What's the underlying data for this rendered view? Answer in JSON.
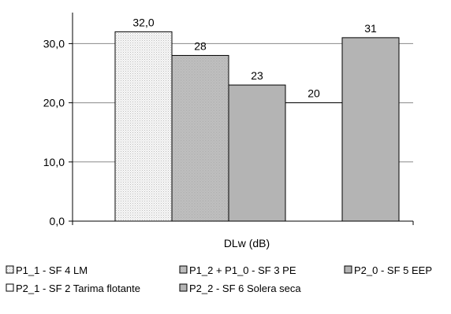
{
  "chart_data": {
    "type": "bar",
    "xlabel": "DLw (dB)",
    "ylabel": "",
    "ylim": [
      0,
      40
    ],
    "yticks": [
      0,
      10,
      20,
      30
    ],
    "ytick_labels": [
      "0,0",
      "10,0",
      "20,0",
      "30,0"
    ],
    "grid": true,
    "legend_position": "bottom",
    "series": [
      {
        "name": "P1_1 - SF 4 LM",
        "value": 32.0,
        "label": "32,0",
        "fill": "dots-light",
        "color": "#eeeeee"
      },
      {
        "name": "P1_2 + P1_0 - SF 3 PE",
        "value": 28,
        "label": "28",
        "fill": "dots-medium",
        "color": "#c6c6c6"
      },
      {
        "name": "P2_0 - SF 5 EEP",
        "value": 23,
        "label": "23",
        "fill": "solid",
        "color": "#b4b4b4"
      },
      {
        "name": "P2_1 - SF 2 Tarima flotante",
        "value": 20,
        "label": "20",
        "fill": "solid",
        "color": "#ffffff"
      },
      {
        "name": "P2_2 - SF 6 Solera seca",
        "value": 31,
        "label": "31",
        "fill": "solid",
        "color": "#b4b4b4"
      }
    ]
  }
}
